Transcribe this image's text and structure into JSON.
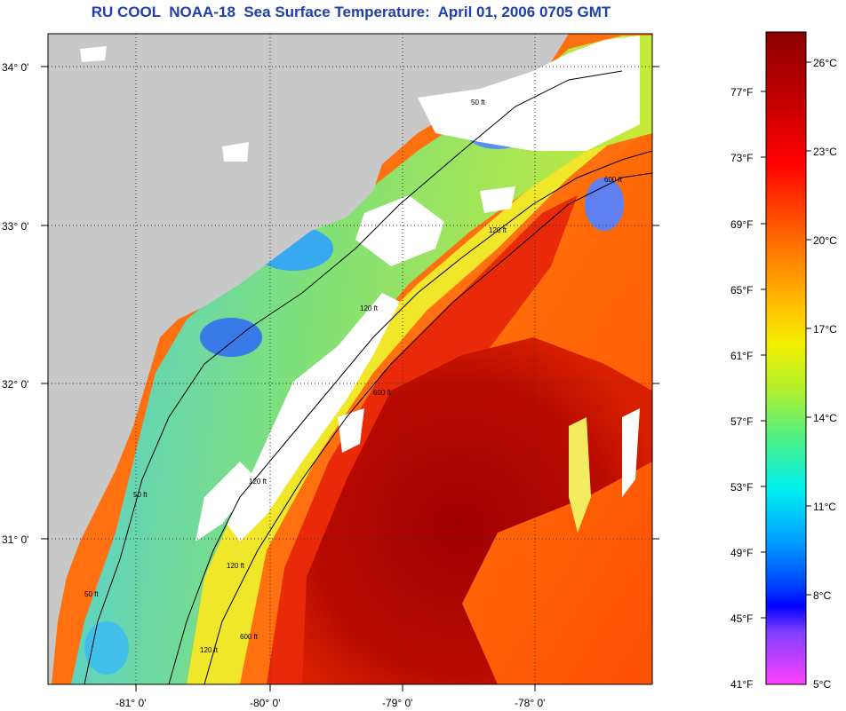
{
  "title": "RU COOL  NOAA-18  Sea Surface Temperature:  April 01, 2006 0705 GMT",
  "map": {
    "lat_labels": [
      "34° 0'",
      "33° 0'",
      "32° 0'",
      "31° 0'"
    ],
    "lon_labels": [
      "-81° 0'",
      "-80° 0'",
      "-79° 0'",
      "-78° 0'"
    ],
    "contour_labels": [
      "50 ft",
      "120 ft",
      "600 ft",
      "120 ft",
      "600 ft",
      "120 ft",
      "50 ft",
      "120 ft",
      "600 ft",
      "120 ft",
      "50 ft"
    ],
    "colors": {
      "land": "#c8c8c8",
      "cloud": "#ffffff",
      "coastal_cool": "#4fc8e8",
      "shelf_green": "#a8e050",
      "shelf_yellow": "#f0e82a",
      "gulf_orange": "#ff7a10",
      "gulf_red": "#e83010",
      "gulf_core": "#a80000"
    }
  },
  "colorbar": {
    "fahrenheit_labels": [
      "77°F",
      "73°F",
      "69°F",
      "65°F",
      "61°F",
      "57°F",
      "53°F",
      "49°F",
      "45°F",
      "41°F"
    ],
    "celsius_labels": [
      "26°C",
      "23°C",
      "20°C",
      "17°C",
      "14°C",
      "11°C",
      "8°C",
      "5°C"
    ],
    "colors_top_to_bottom": [
      "#8a0000",
      "#c00000",
      "#ff0000",
      "#ff4a00",
      "#ff8c00",
      "#ffc800",
      "#f0f000",
      "#b0f030",
      "#50f080",
      "#00f0f0",
      "#00a0ff",
      "#0040ff",
      "#0000ff",
      "#8040ff",
      "#ff40ff"
    ]
  }
}
